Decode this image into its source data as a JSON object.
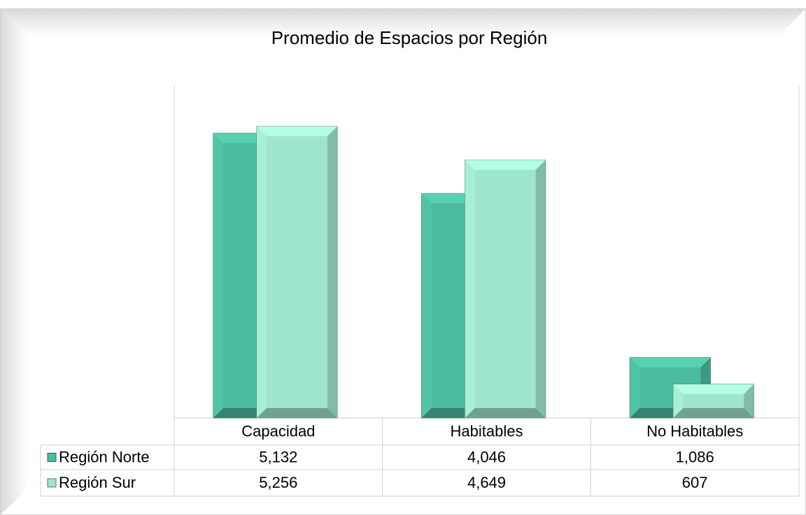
{
  "chart_data": {
    "type": "bar",
    "title": "Promedio de Espacios por Región",
    "categories": [
      "Capacidad",
      "Habitables",
      "No Habitables"
    ],
    "series": [
      {
        "name": "Región Norte",
        "color": "#4dbb9e",
        "values": [
          5132,
          4046,
          1086
        ],
        "value_labels": [
          "5,132",
          "4,046",
          "1,086"
        ]
      },
      {
        "name": "Región Sur",
        "color": "#9fe4cd",
        "values": [
          5256,
          4649,
          607
        ],
        "value_labels": [
          "5,256",
          "4,649",
          "607"
        ]
      }
    ],
    "ylim": [
      0,
      6000
    ]
  }
}
